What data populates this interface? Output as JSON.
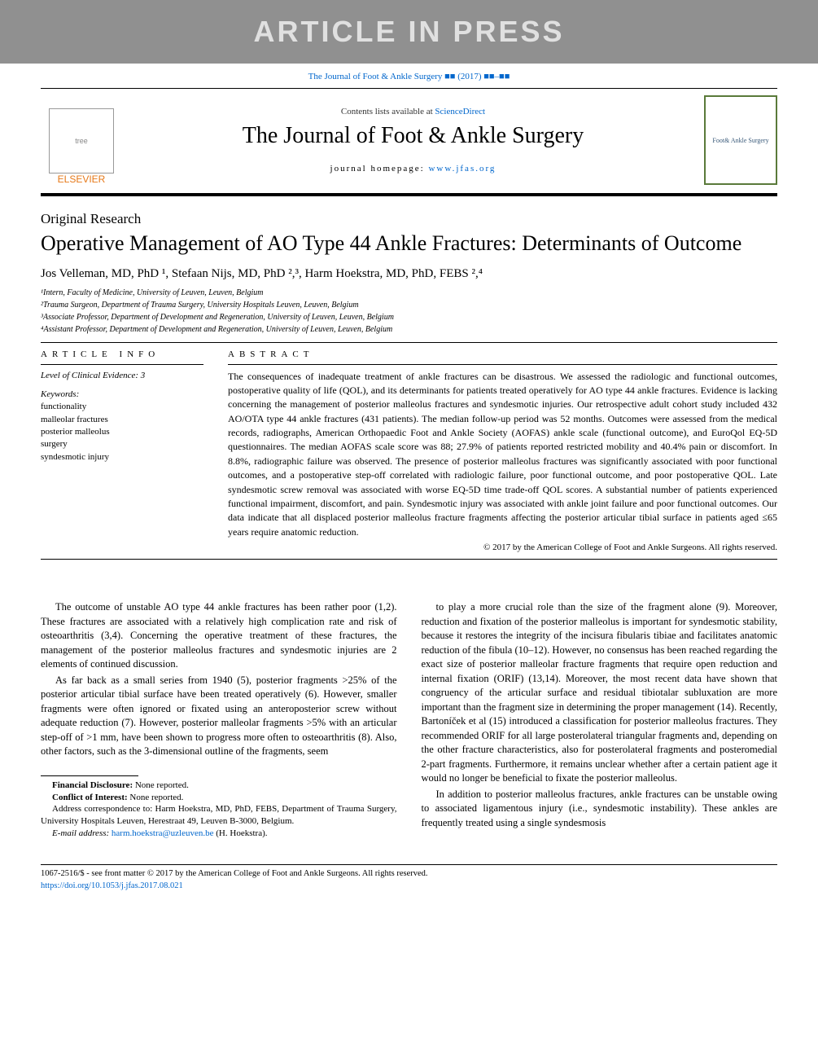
{
  "banner": "ARTICLE IN PRESS",
  "citation": {
    "journal": "The Journal of Foot & Ankle Surgery",
    "ref": "■■ (2017) ■■–■■"
  },
  "header": {
    "contents_prefix": "Contents lists available at ",
    "contents_link": "ScienceDirect",
    "journal_name": "The Journal of Foot & Ankle Surgery",
    "homepage_prefix": "journal homepage: ",
    "homepage_url": "www.jfas.org",
    "publisher": "ELSEVIER",
    "cover_text": "Foot& Ankle Surgery"
  },
  "article_type": "Original Research",
  "title": "Operative Management of AO Type 44 Ankle Fractures: Determinants of Outcome",
  "authors_line": "Jos Velleman, MD, PhD ¹, Stefaan Nijs, MD, PhD ²,³, Harm Hoekstra, MD, PhD, FEBS ²,⁴",
  "affiliations": [
    "¹Intern, Faculty of Medicine, University of Leuven, Leuven, Belgium",
    "²Trauma Surgeon, Department of Trauma Surgery, University Hospitals Leuven, Leuven, Belgium",
    "³Associate Professor, Department of Development and Regeneration, University of Leuven, Leuven, Belgium",
    "⁴Assistant Professor, Department of Development and Regeneration, University of Leuven, Leuven, Belgium"
  ],
  "info": {
    "heading": "ARTICLE INFO",
    "loe_label": "Level of Clinical Evidence:",
    "loe_value": "3",
    "keywords_label": "Keywords:",
    "keywords": [
      "functionality",
      "malleolar fractures",
      "posterior malleolus",
      "surgery",
      "syndesmotic injury"
    ]
  },
  "abstract": {
    "heading": "ABSTRACT",
    "text": "The consequences of inadequate treatment of ankle fractures can be disastrous. We assessed the radiologic and functional outcomes, postoperative quality of life (QOL), and its determinants for patients treated operatively for AO type 44 ankle fractures. Evidence is lacking concerning the management of posterior malleolus fractures and syndesmotic injuries. Our retrospective adult cohort study included 432 AO/OTA type 44 ankle fractures (431 patients). The median follow-up period was 52 months. Outcomes were assessed from the medical records, radiographs, American Orthopaedic Foot and Ankle Society (AOFAS) ankle scale (functional outcome), and EuroQol EQ-5D questionnaires. The median AOFAS scale score was 88; 27.9% of patients reported restricted mobility and 40.4% pain or discomfort. In 8.8%, radiographic failure was observed. The presence of posterior malleolus fractures was significantly associated with poor functional outcomes, and a postoperative step-off correlated with radiologic failure, poor functional outcome, and poor postoperative QOL. Late syndesmotic screw removal was associated with worse EQ-5D time trade-off QOL scores. A substantial number of patients experienced functional impairment, discomfort, and pain. Syndesmotic injury was associated with ankle joint failure and poor functional outcomes. Our data indicate that all displaced posterior malleolus fracture fragments affecting the posterior articular tibial surface in patients aged ≤65 years require anatomic reduction.",
    "copyright": "© 2017 by the American College of Foot and Ankle Surgeons. All rights reserved."
  },
  "body": {
    "left": [
      "The outcome of unstable AO type 44 ankle fractures has been rather poor (1,2). These fractures are associated with a relatively high complication rate and risk of osteoarthritis (3,4). Concerning the operative treatment of these fractures, the management of the posterior malleolus fractures and syndesmotic injuries are 2 elements of continued discussion.",
      "As far back as a small series from 1940 (5), posterior fragments >25% of the posterior articular tibial surface have been treated operatively (6). However, smaller fragments were often ignored or fixated using an anteroposterior screw without adequate reduction (7). However, posterior malleolar fragments >5% with an articular step-off of >1 mm, have been shown to progress more often to osteoarthritis (8). Also, other factors, such as the 3-dimensional outline of the fragments, seem"
    ],
    "right": [
      "to play a more crucial role than the size of the fragment alone (9). Moreover, reduction and fixation of the posterior malleolus is important for syndesmotic stability, because it restores the integrity of the incisura fibularis tibiae and facilitates anatomic reduction of the fibula (10–12). However, no consensus has been reached regarding the exact size of posterior malleolar fracture fragments that require open reduction and internal fixation (ORIF) (13,14). Moreover, the most recent data have shown that congruency of the articular surface and residual tibiotalar subluxation are more important than the fragment size in determining the proper management (14). Recently, Bartoníček et al (15) introduced a classification for posterior malleolus fractures. They recommended ORIF for all large posterolateral triangular fragments and, depending on the other fracture characteristics, also for posterolateral fragments and posteromedial 2-part fragments. Furthermore, it remains unclear whether after a certain patient age it would no longer be beneficial to fixate the posterior malleolus.",
      "In addition to posterior malleolus fractures, ankle fractures can be unstable owing to associated ligamentous injury (i.e., syndesmotic instability). These ankles are frequently treated using a single syndesmosis"
    ]
  },
  "footnotes": {
    "financial_label": "Financial Disclosure:",
    "financial_value": "None reported.",
    "coi_label": "Conflict of Interest:",
    "coi_value": "None reported.",
    "correspondence": "Address correspondence to: Harm Hoekstra, MD, PhD, FEBS, Department of Trauma Surgery, University Hospitals Leuven, Herestraat 49, Leuven B-3000, Belgium.",
    "email_label": "E-mail address:",
    "email": "harm.hoekstra@uzleuven.be",
    "email_suffix": "(H. Hoekstra)."
  },
  "footer": {
    "line1": "1067-2516/$ - see front matter © 2017 by the American College of Foot and Ankle Surgeons. All rights reserved.",
    "doi": "https://doi.org/10.1053/j.jfas.2017.08.021"
  },
  "colors": {
    "link": "#0066cc",
    "banner_bg": "#909090",
    "banner_fg": "#e0e0e0",
    "elsevier": "#e67817"
  }
}
